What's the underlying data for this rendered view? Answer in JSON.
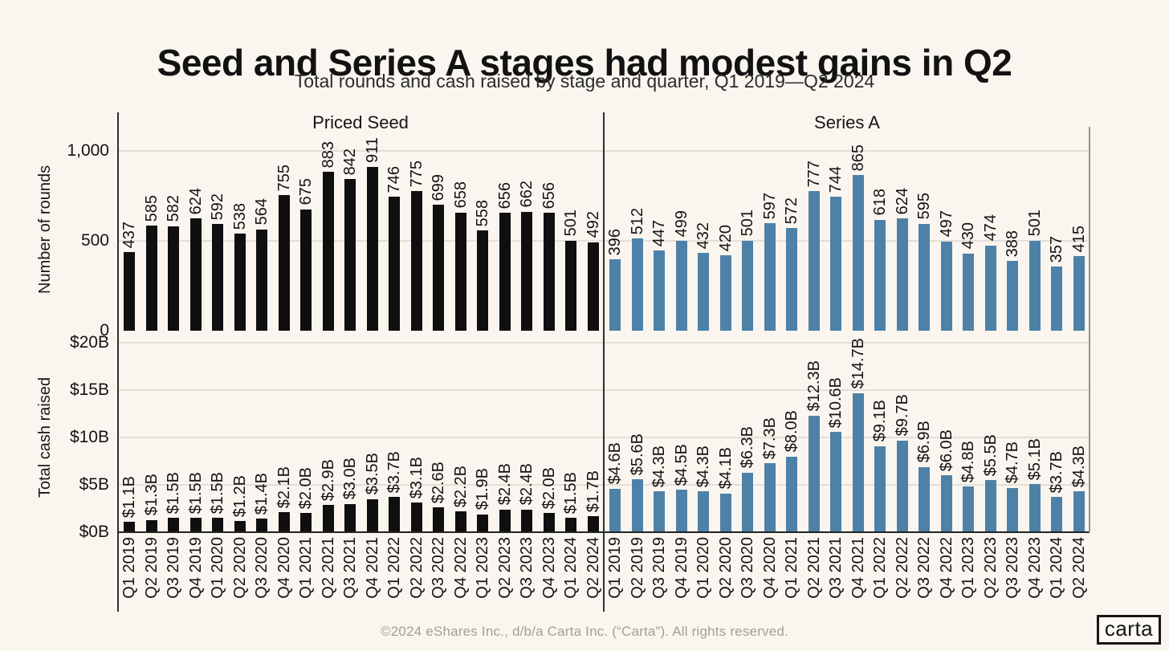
{
  "header": {
    "title": "Seed and Series A stages had modest gains in Q2",
    "subtitle": "Total rounds and cash raised by stage and quarter, Q1 2019—Q2 2024"
  },
  "footer": {
    "copyright": "©2024 eShares Inc., d/b/a Carta Inc. (“Carta”). All rights reserved.",
    "logo_text": "carta"
  },
  "colors": {
    "background": "#FAF6EF",
    "priced_seed_bar": "#0F0F0F",
    "series_a_bar": "#4E81A7",
    "gridline": "#E3DFD7",
    "axis_dark": "#232323",
    "axis_gray": "#989389",
    "footer_text": "#A39F98"
  },
  "chart_data": {
    "type": "bar",
    "title_row_labels": [
      "Priced Seed",
      "Series A"
    ],
    "categories": [
      "Q1 2019",
      "Q2 2019",
      "Q3 2019",
      "Q4 2019",
      "Q1 2020",
      "Q2 2020",
      "Q3 2020",
      "Q4 2020",
      "Q1 2021",
      "Q2 2021",
      "Q3 2021",
      "Q4 2021",
      "Q1 2022",
      "Q2 2022",
      "Q3 2022",
      "Q4 2022",
      "Q1 2023",
      "Q2 2023",
      "Q3 2023",
      "Q4 2023",
      "Q1 2024",
      "Q2 2024"
    ],
    "grid": "horizontal-only",
    "legend": "none",
    "rows": [
      {
        "ylabel": "Number of rounds",
        "ylim": [
          0,
          1130
        ],
        "yticks": [
          {
            "label": "1,000",
            "value": 1000
          },
          {
            "label": "500",
            "value": 500
          },
          {
            "label": "0",
            "value": 0
          }
        ],
        "grid_values": [
          1000,
          500
        ],
        "panels": [
          {
            "name": "Priced Seed",
            "values": [
              437,
              585,
              582,
              624,
              592,
              538,
              564,
              755,
              675,
              883,
              842,
              911,
              746,
              775,
              699,
              658,
              558,
              656,
              662,
              656,
              501,
              492
            ]
          },
          {
            "name": "Series A",
            "values": [
              396,
              512,
              447,
              499,
              432,
              420,
              501,
              597,
              572,
              777,
              744,
              865,
              618,
              624,
              595,
              497,
              430,
              474,
              388,
              501,
              357,
              415
            ]
          }
        ]
      },
      {
        "ylabel": "Total cash raised",
        "ylim": [
          0,
          20
        ],
        "yticks": [
          {
            "label": "$20B",
            "value": 20
          },
          {
            "label": "$15B",
            "value": 15
          },
          {
            "label": "$10B",
            "value": 10
          },
          {
            "label": "$5B",
            "value": 5
          },
          {
            "label": "$0B",
            "value": 0
          }
        ],
        "grid_values": [
          20,
          15,
          10,
          5
        ],
        "panels": [
          {
            "name": "Priced Seed",
            "values": [
              1.1,
              1.3,
              1.5,
              1.5,
              1.5,
              1.2,
              1.4,
              2.1,
              2.0,
              2.9,
              3.0,
              3.5,
              3.7,
              3.1,
              2.6,
              2.2,
              1.9,
              2.4,
              2.4,
              2.0,
              1.5,
              1.7
            ],
            "labels": [
              "$1.1B",
              "$1.3B",
              "$1.5B",
              "$1.5B",
              "$1.5B",
              "$1.2B",
              "$1.4B",
              "$2.1B",
              "$2.0B",
              "$2.9B",
              "$3.0B",
              "$3.5B",
              "$3.7B",
              "$3.1B",
              "$2.6B",
              "$2.2B",
              "$1.9B",
              "$2.4B",
              "$2.4B",
              "$2.0B",
              "$1.5B",
              "$1.7B"
            ]
          },
          {
            "name": "Series A",
            "values": [
              4.6,
              5.6,
              4.3,
              4.5,
              4.3,
              4.1,
              6.3,
              7.3,
              8.0,
              12.3,
              10.6,
              14.7,
              9.1,
              9.7,
              6.9,
              6.0,
              4.8,
              5.5,
              4.7,
              5.1,
              3.7,
              4.3
            ],
            "labels": [
              "$4.6B",
              "$5.6B",
              "$4.3B",
              "$4.5B",
              "$4.3B",
              "$4.1B",
              "$6.3B",
              "$7.3B",
              "$8.0B",
              "$12.3B",
              "$10.6B",
              "$14.7B",
              "$9.1B",
              "$9.7B",
              "$6.9B",
              "$6.0B",
              "$4.8B",
              "$5.5B",
              "$4.7B",
              "$5.1B",
              "$3.7B",
              "$4.3B"
            ]
          }
        ]
      }
    ]
  }
}
